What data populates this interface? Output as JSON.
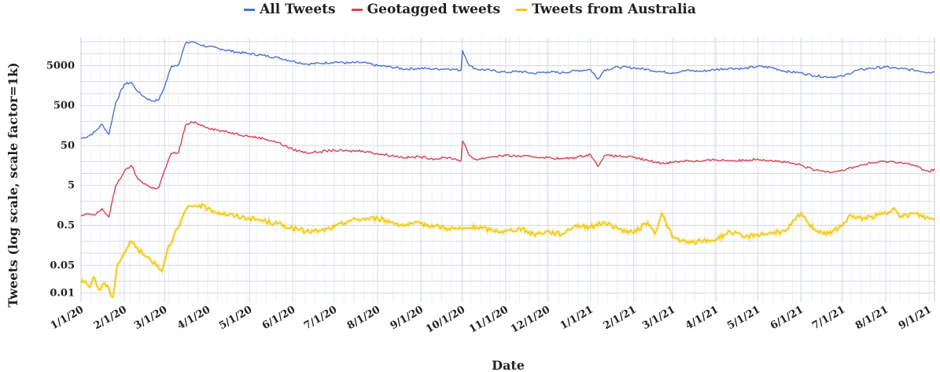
{
  "chart_data": {
    "type": "line",
    "title": "",
    "xlabel": "Date",
    "ylabel": "Tweets (log scale, scale factor=1k)",
    "y_scale": "log",
    "ylim": [
      0.006,
      25000
    ],
    "xlim": [
      "2020-01-01",
      "2021-09-05"
    ],
    "grid": true,
    "legend_position": "top-center",
    "x_ticks": [
      "1/1/20",
      "2/1/20",
      "3/1/20",
      "4/1/20",
      "5/1/20",
      "6/1/20",
      "7/1/20",
      "8/1/20",
      "9/1/20",
      "10/1/20",
      "11/1/20",
      "12/1/20",
      "1/1/21",
      "2/1/21",
      "3/1/21",
      "4/1/21",
      "5/1/21",
      "6/1/21",
      "7/1/21",
      "8/1/21",
      "9/1/21"
    ],
    "x_tick_dates": [
      "2020-01-01",
      "2020-02-01",
      "2020-03-01",
      "2020-04-01",
      "2020-05-01",
      "2020-06-01",
      "2020-07-01",
      "2020-08-01",
      "2020-09-01",
      "2020-10-01",
      "2020-11-01",
      "2020-12-01",
      "2021-01-01",
      "2021-02-01",
      "2021-03-01",
      "2021-04-01",
      "2021-05-01",
      "2021-06-01",
      "2021-07-01",
      "2021-08-01",
      "2021-09-01"
    ],
    "y_ticks": [
      {
        "value": 0.01,
        "label": "0.01"
      },
      {
        "value": 0.05,
        "label": "0.05"
      },
      {
        "value": 0.5,
        "label": "0.5"
      },
      {
        "value": 5,
        "label": "5"
      },
      {
        "value": 50,
        "label": "50"
      },
      {
        "value": 500,
        "label": "500"
      },
      {
        "value": 5000,
        "label": "5000"
      }
    ],
    "series": [
      {
        "name": "All Tweets",
        "color": "#4a72d6",
        "points": [
          [
            "2020-01-01",
            75
          ],
          [
            "2020-01-06",
            85
          ],
          [
            "2020-01-11",
            110
          ],
          [
            "2020-01-16",
            170
          ],
          [
            "2020-01-21",
            95
          ],
          [
            "2020-01-26",
            600
          ],
          [
            "2020-02-01",
            1700
          ],
          [
            "2020-02-06",
            1900
          ],
          [
            "2020-02-11",
            1100
          ],
          [
            "2020-02-16",
            800
          ],
          [
            "2020-02-21",
            650
          ],
          [
            "2020-02-26",
            700
          ],
          [
            "2020-03-01",
            1500
          ],
          [
            "2020-03-06",
            4900
          ],
          [
            "2020-03-11",
            5300
          ],
          [
            "2020-03-16",
            18000
          ],
          [
            "2020-03-21",
            20000
          ],
          [
            "2020-03-26",
            17000
          ],
          [
            "2020-04-01",
            15000
          ],
          [
            "2020-04-11",
            13000
          ],
          [
            "2020-04-21",
            11000
          ],
          [
            "2020-05-01",
            10000
          ],
          [
            "2020-05-11",
            9000
          ],
          [
            "2020-05-21",
            8000
          ],
          [
            "2020-06-01",
            6500
          ],
          [
            "2020-06-11",
            5500
          ],
          [
            "2020-06-21",
            5700
          ],
          [
            "2020-07-01",
            6200
          ],
          [
            "2020-07-11",
            5800
          ],
          [
            "2020-07-21",
            6000
          ],
          [
            "2020-08-01",
            5000
          ],
          [
            "2020-08-11",
            4600
          ],
          [
            "2020-08-21",
            4100
          ],
          [
            "2020-09-01",
            4300
          ],
          [
            "2020-09-11",
            4100
          ],
          [
            "2020-09-21",
            4200
          ],
          [
            "2020-09-30",
            3800
          ],
          [
            "2020-10-01",
            12000
          ],
          [
            "2020-10-06",
            5000
          ],
          [
            "2020-10-11",
            4100
          ],
          [
            "2020-10-21",
            3800
          ],
          [
            "2020-11-01",
            3400
          ],
          [
            "2020-11-11",
            3600
          ],
          [
            "2020-11-21",
            3200
          ],
          [
            "2020-12-01",
            3500
          ],
          [
            "2020-12-11",
            3300
          ],
          [
            "2020-12-21",
            3700
          ],
          [
            "2021-01-01",
            4000
          ],
          [
            "2021-01-06",
            2300
          ],
          [
            "2021-01-11",
            3900
          ],
          [
            "2021-01-21",
            4600
          ],
          [
            "2021-02-01",
            4400
          ],
          [
            "2021-02-11",
            4000
          ],
          [
            "2021-02-21",
            3500
          ],
          [
            "2021-03-01",
            3300
          ],
          [
            "2021-03-11",
            3800
          ],
          [
            "2021-03-21",
            3600
          ],
          [
            "2021-04-01",
            4000
          ],
          [
            "2021-04-11",
            4300
          ],
          [
            "2021-04-21",
            4200
          ],
          [
            "2021-05-01",
            4800
          ],
          [
            "2021-05-11",
            4500
          ],
          [
            "2021-05-21",
            3600
          ],
          [
            "2021-06-01",
            3300
          ],
          [
            "2021-06-11",
            2800
          ],
          [
            "2021-06-21",
            2600
          ],
          [
            "2021-07-01",
            2700
          ],
          [
            "2021-07-11",
            3800
          ],
          [
            "2021-07-21",
            4300
          ],
          [
            "2021-08-01",
            4600
          ],
          [
            "2021-08-11",
            4200
          ],
          [
            "2021-08-21",
            3900
          ],
          [
            "2021-09-01",
            3400
          ],
          [
            "2021-09-05",
            3500
          ]
        ]
      },
      {
        "name": "Geotagged tweets",
        "color": "#d94252",
        "points": [
          [
            "2020-01-01",
            0.85
          ],
          [
            "2020-01-06",
            0.95
          ],
          [
            "2020-01-11",
            0.9
          ],
          [
            "2020-01-16",
            1.3
          ],
          [
            "2020-01-21",
            0.8
          ],
          [
            "2020-01-26",
            5
          ],
          [
            "2020-02-01",
            11
          ],
          [
            "2020-02-06",
            16
          ],
          [
            "2020-02-11",
            7
          ],
          [
            "2020-02-16",
            5.5
          ],
          [
            "2020-02-21",
            4.2
          ],
          [
            "2020-02-26",
            4.5
          ],
          [
            "2020-03-01",
            12
          ],
          [
            "2020-03-06",
            32
          ],
          [
            "2020-03-11",
            33
          ],
          [
            "2020-03-16",
            160
          ],
          [
            "2020-03-21",
            190
          ],
          [
            "2020-03-26",
            170
          ],
          [
            "2020-04-01",
            140
          ],
          [
            "2020-04-11",
            115
          ],
          [
            "2020-04-21",
            100
          ],
          [
            "2020-05-01",
            85
          ],
          [
            "2020-05-11",
            75
          ],
          [
            "2020-05-21",
            60
          ],
          [
            "2020-06-01",
            40
          ],
          [
            "2020-06-11",
            33
          ],
          [
            "2020-06-21",
            35
          ],
          [
            "2020-07-01",
            38
          ],
          [
            "2020-07-11",
            36
          ],
          [
            "2020-07-21",
            37
          ],
          [
            "2020-08-01",
            31
          ],
          [
            "2020-08-11",
            28
          ],
          [
            "2020-08-21",
            25
          ],
          [
            "2020-09-01",
            26
          ],
          [
            "2020-09-11",
            23
          ],
          [
            "2020-09-21",
            25
          ],
          [
            "2020-09-30",
            21
          ],
          [
            "2020-10-01",
            65
          ],
          [
            "2020-10-06",
            28
          ],
          [
            "2020-10-11",
            22
          ],
          [
            "2020-10-21",
            26
          ],
          [
            "2020-11-01",
            28
          ],
          [
            "2020-11-11",
            27
          ],
          [
            "2020-11-21",
            26
          ],
          [
            "2020-12-01",
            25
          ],
          [
            "2020-12-11",
            23
          ],
          [
            "2020-12-21",
            25
          ],
          [
            "2021-01-01",
            30
          ],
          [
            "2021-01-06",
            15
          ],
          [
            "2021-01-11",
            28
          ],
          [
            "2021-01-21",
            27
          ],
          [
            "2021-02-01",
            25
          ],
          [
            "2021-02-11",
            21
          ],
          [
            "2021-02-21",
            18
          ],
          [
            "2021-03-01",
            19
          ],
          [
            "2021-03-11",
            21
          ],
          [
            "2021-03-21",
            20
          ],
          [
            "2021-04-01",
            22
          ],
          [
            "2021-04-11",
            21
          ],
          [
            "2021-04-21",
            21
          ],
          [
            "2021-05-01",
            23
          ],
          [
            "2021-05-11",
            21
          ],
          [
            "2021-05-21",
            19
          ],
          [
            "2021-06-01",
            16
          ],
          [
            "2021-06-11",
            12
          ],
          [
            "2021-06-21",
            11
          ],
          [
            "2021-07-01",
            12
          ],
          [
            "2021-07-11",
            15
          ],
          [
            "2021-07-21",
            18
          ],
          [
            "2021-08-01",
            20
          ],
          [
            "2021-08-11",
            19
          ],
          [
            "2021-08-21",
            16
          ],
          [
            "2021-09-01",
            11
          ],
          [
            "2021-09-05",
            13
          ]
        ]
      },
      {
        "name": "Tweets from Australia",
        "color": "#f2c600",
        "points": [
          [
            "2020-01-01",
            0.018
          ],
          [
            "2020-01-04",
            0.02
          ],
          [
            "2020-01-07",
            0.014
          ],
          [
            "2020-01-10",
            0.025
          ],
          [
            "2020-01-14",
            0.012
          ],
          [
            "2020-01-18",
            0.018
          ],
          [
            "2020-01-24",
            0.008
          ],
          [
            "2020-01-27",
            0.05
          ],
          [
            "2020-02-01",
            0.1
          ],
          [
            "2020-02-06",
            0.2
          ],
          [
            "2020-02-10",
            0.14
          ],
          [
            "2020-02-15",
            0.09
          ],
          [
            "2020-02-20",
            0.07
          ],
          [
            "2020-02-25",
            0.05
          ],
          [
            "2020-02-28",
            0.035
          ],
          [
            "2020-03-03",
            0.12
          ],
          [
            "2020-03-08",
            0.3
          ],
          [
            "2020-03-12",
            0.5
          ],
          [
            "2020-03-16",
            1.2
          ],
          [
            "2020-03-21",
            1.5
          ],
          [
            "2020-03-26",
            1.6
          ],
          [
            "2020-04-01",
            1.3
          ],
          [
            "2020-04-11",
            1.0
          ],
          [
            "2020-04-21",
            0.85
          ],
          [
            "2020-05-01",
            0.75
          ],
          [
            "2020-05-11",
            0.65
          ],
          [
            "2020-05-21",
            0.55
          ],
          [
            "2020-06-01",
            0.42
          ],
          [
            "2020-06-11",
            0.35
          ],
          [
            "2020-06-21",
            0.36
          ],
          [
            "2020-07-01",
            0.45
          ],
          [
            "2020-07-11",
            0.65
          ],
          [
            "2020-07-21",
            0.72
          ],
          [
            "2020-08-01",
            0.75
          ],
          [
            "2020-08-11",
            0.6
          ],
          [
            "2020-08-21",
            0.5
          ],
          [
            "2020-09-01",
            0.55
          ],
          [
            "2020-09-11",
            0.48
          ],
          [
            "2020-09-21",
            0.42
          ],
          [
            "2020-10-01",
            0.4
          ],
          [
            "2020-10-11",
            0.45
          ],
          [
            "2020-10-21",
            0.38
          ],
          [
            "2020-11-01",
            0.35
          ],
          [
            "2020-11-11",
            0.42
          ],
          [
            "2020-11-21",
            0.3
          ],
          [
            "2020-12-01",
            0.35
          ],
          [
            "2020-12-11",
            0.3
          ],
          [
            "2020-12-21",
            0.5
          ],
          [
            "2021-01-01",
            0.45
          ],
          [
            "2021-01-11",
            0.6
          ],
          [
            "2021-01-21",
            0.4
          ],
          [
            "2021-02-01",
            0.32
          ],
          [
            "2021-02-11",
            0.6
          ],
          [
            "2021-02-16",
            0.3
          ],
          [
            "2021-02-21",
            1.0
          ],
          [
            "2021-03-01",
            0.25
          ],
          [
            "2021-03-11",
            0.18
          ],
          [
            "2021-03-21",
            0.2
          ],
          [
            "2021-04-01",
            0.22
          ],
          [
            "2021-04-11",
            0.35
          ],
          [
            "2021-04-21",
            0.25
          ],
          [
            "2021-05-01",
            0.3
          ],
          [
            "2021-05-11",
            0.32
          ],
          [
            "2021-05-21",
            0.35
          ],
          [
            "2021-06-01",
            1.0
          ],
          [
            "2021-06-06",
            0.6
          ],
          [
            "2021-06-11",
            0.4
          ],
          [
            "2021-06-21",
            0.3
          ],
          [
            "2021-07-01",
            0.5
          ],
          [
            "2021-07-06",
            0.9
          ],
          [
            "2021-07-11",
            0.75
          ],
          [
            "2021-07-21",
            0.8
          ],
          [
            "2021-08-01",
            1.0
          ],
          [
            "2021-08-06",
            1.3
          ],
          [
            "2021-08-11",
            0.8
          ],
          [
            "2021-08-21",
            1.0
          ],
          [
            "2021-09-01",
            0.75
          ],
          [
            "2021-09-05",
            0.7
          ]
        ]
      }
    ]
  }
}
